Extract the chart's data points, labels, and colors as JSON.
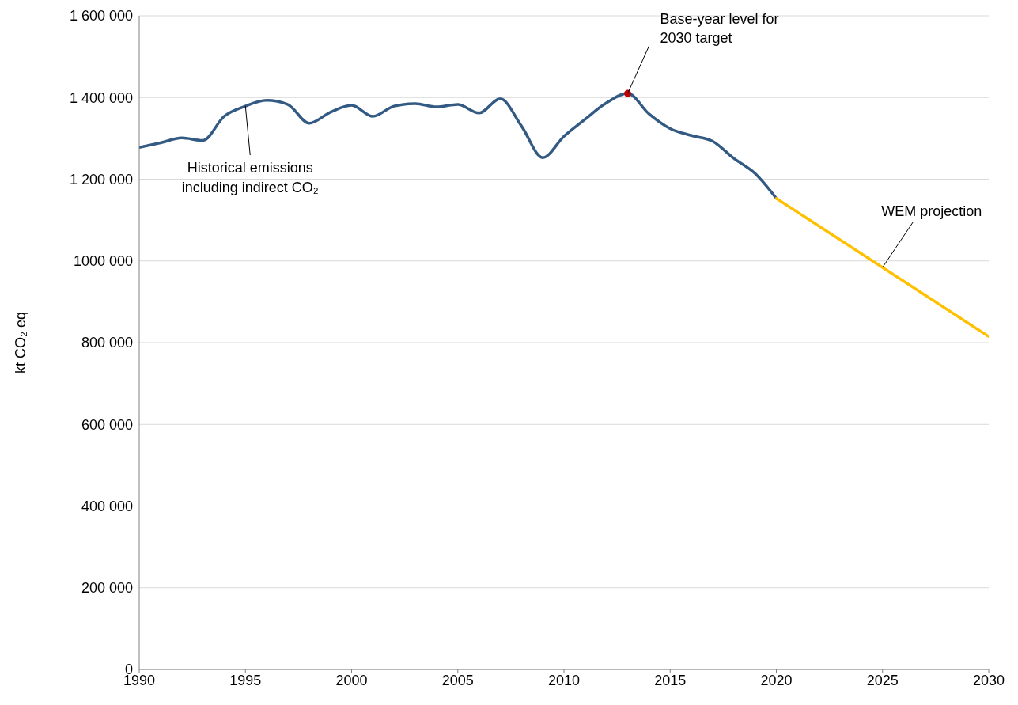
{
  "chart_data": {
    "type": "line",
    "ylabel": "kt CO₂ eq",
    "xlim": [
      1990,
      2030
    ],
    "xticks": [
      1990,
      1995,
      2000,
      2005,
      2010,
      2015,
      2020,
      2025,
      2030
    ],
    "ylim": [
      0,
      1600000
    ],
    "yticks": [
      0,
      {
        "value": 200000,
        "label": "200 000"
      },
      {
        "value": 400000,
        "label": "400 000"
      },
      {
        "value": 600000,
        "label": "600 000"
      },
      {
        "value": 800000,
        "label": "800 000"
      },
      {
        "value": 1000000,
        "label": "1000 000"
      },
      {
        "value": 1200000,
        "label": "1 200 000"
      },
      {
        "value": 1400000,
        "label": "1 400 000"
      },
      {
        "value": 1600000,
        "label": "1 600 000"
      }
    ],
    "grid": "y",
    "series": [
      {
        "color": "#335a83",
        "x": [
          1990,
          1991,
          1992,
          1993,
          1994,
          1995,
          1996,
          1997,
          1998,
          1999,
          2000,
          2001,
          2002,
          2003,
          2004,
          2005,
          2006,
          2007,
          2008,
          2009,
          2010,
          2011,
          2012,
          2013,
          2014,
          2015,
          2016,
          2017,
          2018,
          2019,
          2020
        ],
        "values": [
          1278000,
          1289000,
          1301000,
          1295000,
          1354000,
          1379000,
          1393000,
          1383000,
          1337000,
          1364000,
          1381000,
          1354000,
          1379000,
          1385000,
          1377000,
          1383000,
          1362000,
          1397000,
          1330000,
          1253000,
          1305000,
          1347000,
          1387000,
          1410000,
          1360000,
          1324000,
          1307000,
          1293000,
          1251000,
          1214000,
          1153000
        ]
      },
      {
        "color": "#ffc000",
        "x": [
          2020,
          2030
        ],
        "values": [
          1153000,
          815000
        ]
      },
      {
        "type": "scatter",
        "color": "#c00000",
        "x": [
          2013
        ],
        "values": [
          1410000
        ]
      }
    ],
    "annotations": [
      {
        "text": "Historical emissions\nincluding indirect CO₂",
        "x": 1995,
        "y": 1379000
      },
      {
        "text": "Base-year level for\n2030  target",
        "x": 2013,
        "y": 1410000
      },
      {
        "text": "WEM projection",
        "x": 2025,
        "y": 984000
      }
    ]
  }
}
